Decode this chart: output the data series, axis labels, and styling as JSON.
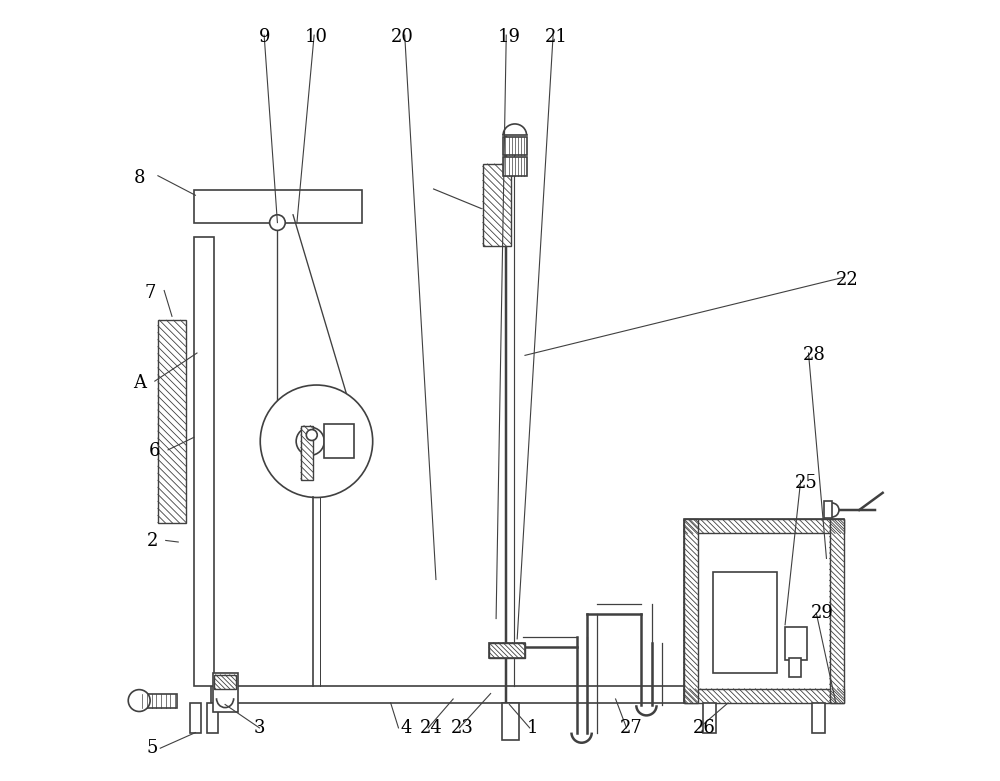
{
  "bg_color": "#ffffff",
  "line_color": "#404040",
  "label_color": "#000000",
  "figsize": [
    10.0,
    7.81
  ]
}
